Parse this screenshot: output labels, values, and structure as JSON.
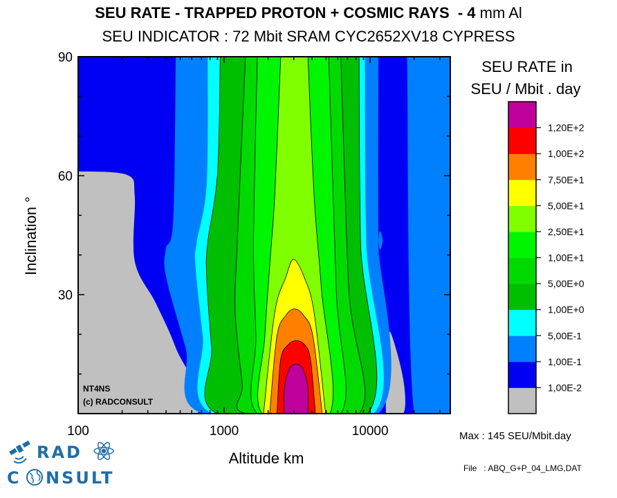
{
  "chart_data": {
    "type": "heatmap",
    "subtype": "filled-contour",
    "title_bold": "SEU RATE - TRAPPED PROTON + COSMIC RAYS  - 4",
    "title_thin": " mm Al",
    "subtitle": "SEU INDICATOR : 72 Mbit SRAM CYC2652XV18 CYPRESS",
    "xlabel": "Altitude km",
    "ylabel": "Inclination °",
    "xscale": "log",
    "xlim": [
      100,
      35400
    ],
    "ylim": [
      0,
      90
    ],
    "xticks": [
      {
        "value": 100,
        "label": "100"
      },
      {
        "value": 1000,
        "label": "1000"
      },
      {
        "value": 10000,
        "label": "10000"
      }
    ],
    "yticks": [
      {
        "value": 30,
        "label": "30"
      },
      {
        "value": 60,
        "label": "60"
      },
      {
        "value": 90,
        "label": "90"
      }
    ],
    "legend": {
      "title_line1": "SEU RATE in",
      "title_line2": "SEU / Mbit . day",
      "placement": "right",
      "levels": [
        {
          "color": "#C0C0C0",
          "label": "1,00E-2"
        },
        {
          "color": "#0000F5",
          "label": "1,00E-1"
        },
        {
          "color": "#0080FF",
          "label": "5,00E-1"
        },
        {
          "color": "#00FFFF",
          "label": "1,00E+0"
        },
        {
          "color": "#00BF00",
          "label": "5,00E+0"
        },
        {
          "color": "#00DA00",
          "label": "1,00E+1"
        },
        {
          "color": "#00F500",
          "label": "2,50E+1"
        },
        {
          "color": "#80FF00",
          "label": "5,00E+1"
        },
        {
          "color": "#FFFF00",
          "label": "7,50E+1"
        },
        {
          "color": "#FF8000",
          "label": "1,00E+2"
        },
        {
          "color": "#FF0000",
          "label": "1,20E+2"
        },
        {
          "color": "#C0009A",
          "label": ""
        }
      ]
    },
    "background_color": "#0000F5",
    "regions": [
      {
        "level": "<0.01",
        "color": "#C0C0C0",
        "outline": false,
        "points": [
          [
            100,
            61.1
          ],
          [
            216,
            60.2
          ],
          [
            244,
            54.9
          ],
          [
            244,
            38.4
          ],
          [
            341,
            27.8
          ],
          [
            466,
            16.6
          ],
          [
            649,
            0
          ],
          [
            100,
            0
          ]
        ]
      },
      {
        "level": "<0.01",
        "color": "#C0C0C0",
        "outline": false,
        "points": [
          [
            12800,
            18.4
          ],
          [
            13900,
            20.2
          ],
          [
            16900,
            8.4
          ],
          [
            16900,
            0
          ],
          [
            12800,
            0
          ]
        ]
      },
      {
        "level": ">=0.1",
        "color": "#0080FF",
        "outline": false,
        "points": [
          [
            17900,
            90
          ],
          [
            20000,
            0
          ],
          [
            35400,
            0
          ],
          [
            35400,
            90
          ]
        ]
      },
      {
        "level": ">=0.1",
        "color": "#0080FF",
        "outline": false,
        "points": [
          [
            466,
            90
          ],
          [
            448,
            49
          ],
          [
            398,
            41.4
          ],
          [
            401,
            34.3
          ],
          [
            544,
            16.6
          ],
          [
            714,
            0
          ],
          [
            11400,
            0
          ],
          [
            11400,
            42.5
          ],
          [
            12200,
            43.7
          ],
          [
            11400,
            45
          ],
          [
            11400,
            90
          ]
        ]
      },
      {
        "level": ">=0.5",
        "color": "#00FFFF",
        "outline": false,
        "points": [
          [
            772,
            90
          ],
          [
            759,
            57.9
          ],
          [
            649,
            43.2
          ],
          [
            636,
            37.3
          ],
          [
            714,
            19.6
          ],
          [
            829,
            0
          ],
          [
            10600,
            0
          ],
          [
            9400,
            43.2
          ],
          [
            9200,
            90
          ]
        ]
      },
      {
        "level": ">=1",
        "color": "#00BF00",
        "outline": true,
        "points": [
          [
            940,
            90
          ],
          [
            902,
            60.8
          ],
          [
            772,
            43.2
          ],
          [
            759,
            34.3
          ],
          [
            820,
            16.6
          ],
          [
            902,
            0
          ],
          [
            9600,
            0
          ],
          [
            8600,
            43
          ],
          [
            8400,
            90
          ]
        ]
      },
      {
        "level": ">=5",
        "color": "#00DA00",
        "outline": true,
        "points": [
          [
            1400,
            90
          ],
          [
            1230,
            43.2
          ],
          [
            1190,
            25.5
          ],
          [
            1330,
            7.7
          ],
          [
            1410,
            0
          ],
          [
            8400,
            0
          ],
          [
            7140,
            31.4
          ],
          [
            6300,
            90
          ]
        ]
      },
      {
        "level": ">=10",
        "color": "#00F500",
        "outline": true,
        "points": [
          [
            1687,
            90
          ],
          [
            1590,
            43.2
          ],
          [
            1650,
            19.6
          ],
          [
            1690,
            0
          ],
          [
            6300,
            0
          ],
          [
            5860,
            31.4
          ],
          [
            5200,
            90
          ]
        ]
      },
      {
        "level": ">=25",
        "color": "#80FF00",
        "outline": true,
        "points": [
          [
            2440,
            90
          ],
          [
            2220,
            55
          ],
          [
            2050,
            37.3
          ],
          [
            1900,
            19.6
          ],
          [
            1820,
            0
          ],
          [
            5300,
            0
          ],
          [
            4640,
            31.4
          ],
          [
            4130,
            55
          ],
          [
            3750,
            90
          ]
        ]
      },
      {
        "level": ">=50",
        "color": "#FFFF00",
        "outline": true,
        "points": [
          [
            1860,
            0
          ],
          [
            2220,
            25.5
          ],
          [
            2640,
            34.3
          ],
          [
            2990,
            38.9
          ],
          [
            3540,
            34.3
          ],
          [
            4130,
            25.5
          ],
          [
            4950,
            0
          ]
        ]
      },
      {
        "level": ">=75",
        "color": "#FF8000",
        "outline": true,
        "points": [
          [
            2050,
            0
          ],
          [
            2300,
            19.6
          ],
          [
            2650,
            24.8
          ],
          [
            3020,
            26.4
          ],
          [
            3500,
            24.8
          ],
          [
            4050,
            19.6
          ],
          [
            4700,
            0
          ]
        ]
      },
      {
        "level": ">=100",
        "color": "#FF0000",
        "outline": true,
        "points": [
          [
            2300,
            0
          ],
          [
            2440,
            13.7
          ],
          [
            2750,
            17.4
          ],
          [
            3120,
            18.4
          ],
          [
            3550,
            17.4
          ],
          [
            3900,
            13.7
          ],
          [
            4220,
            0
          ]
        ]
      },
      {
        "level": ">=120",
        "color": "#C0009A",
        "outline": true,
        "points": [
          [
            2570,
            0
          ],
          [
            2590,
            6.6
          ],
          [
            2800,
            11.3
          ],
          [
            3140,
            12.5
          ],
          [
            3450,
            11.3
          ],
          [
            3750,
            6.6
          ],
          [
            3750,
            0
          ]
        ]
      }
    ],
    "annotations": [
      "NT4NS",
      "(c) RADCONSULT"
    ]
  },
  "footer": {
    "max_text": "Max : 145 SEU/Mbit.day",
    "file_text": "File   : ABQ_G+P_04_LMG,DAT"
  },
  "logo": {
    "line1": "RAD",
    "line2_a": "C",
    "line2_b": "NSULT"
  }
}
